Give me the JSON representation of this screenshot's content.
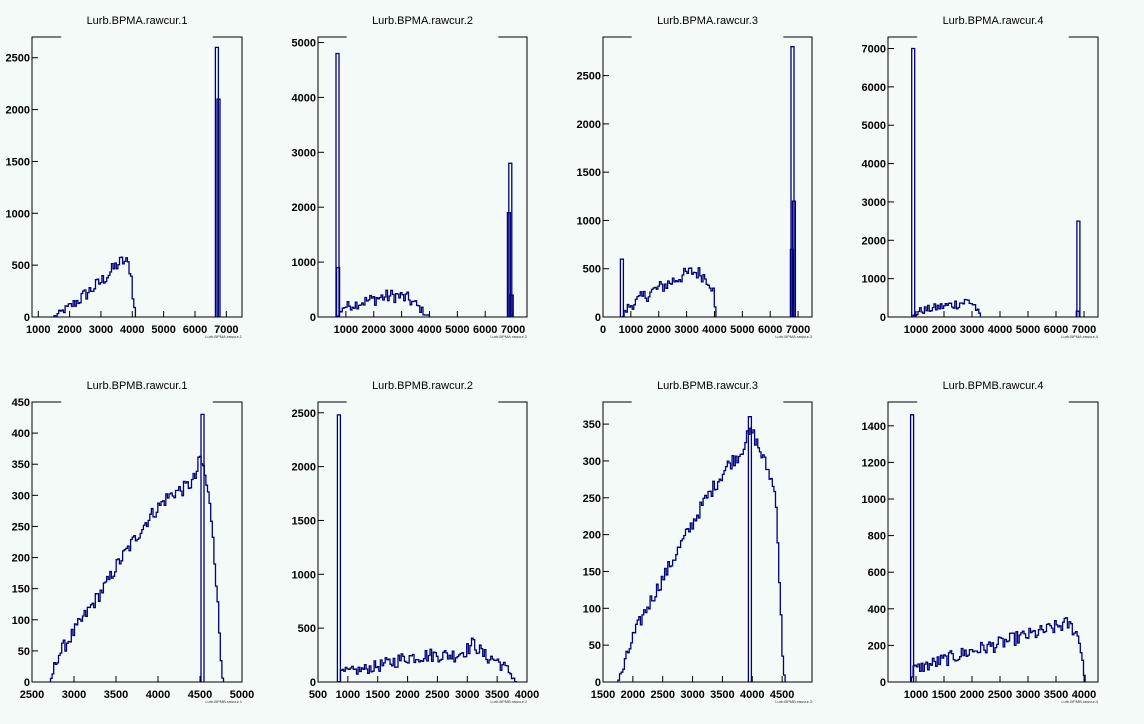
{
  "chart_data": [
    {
      "type": "line",
      "title": "Lurb.BPMA.rawcur.1",
      "xlabel": "Lurb.BPMA.rawcur.1",
      "xlim": [
        800,
        7500
      ],
      "ylim": [
        0,
        2700
      ],
      "xticks": [
        {
          "v": 1000,
          "t": "1000"
        },
        {
          "v": 2000,
          "t": "2000"
        },
        {
          "v": 3000,
          "t": "3000"
        },
        {
          "v": 4000,
          "t": "4000"
        },
        {
          "v": 5000,
          "t": "5000"
        },
        {
          "v": 6000,
          "t": "6000"
        },
        {
          "v": 7000,
          "t": "7000"
        }
      ],
      "yticks": [
        {
          "v": 0,
          "t": "0"
        },
        {
          "v": 500,
          "t": "500"
        },
        {
          "v": 1000,
          "t": "1000"
        },
        {
          "v": 1500,
          "t": "1500"
        },
        {
          "v": 2000,
          "t": "2000"
        },
        {
          "v": 2500,
          "t": "2500"
        }
      ],
      "series": [
        {
          "x": [
            1500,
            1800,
            2200,
            2600,
            3000,
            3300,
            3500,
            3700,
            3850,
            3950,
            4050,
            4100
          ],
          "y": [
            0,
            60,
            140,
            240,
            340,
            430,
            500,
            540,
            520,
            450,
            150,
            0
          ]
        }
      ],
      "spikes": [
        {
          "x": 6700,
          "y": 2600
        },
        {
          "x": 6750,
          "y": 2100
        }
      ]
    },
    {
      "type": "line",
      "title": "Lurb.BPMA.rawcur.2",
      "xlabel": "Lurb.BPMA.rawcur.2",
      "xlim": [
        0,
        7500
      ],
      "ylim": [
        0,
        5100
      ],
      "xticks": [
        {
          "v": 1000,
          "t": "1000"
        },
        {
          "v": 2000,
          "t": "2000"
        },
        {
          "v": 3000,
          "t": "3000"
        },
        {
          "v": 4000,
          "t": "4000"
        },
        {
          "v": 5000,
          "t": "5000"
        },
        {
          "v": 6000,
          "t": "6000"
        },
        {
          "v": 7000,
          "t": "7000"
        }
      ],
      "yticks": [
        {
          "v": 0,
          "t": "0"
        },
        {
          "v": 1000,
          "t": "1000"
        },
        {
          "v": 2000,
          "t": "2000"
        },
        {
          "v": 3000,
          "t": "3000"
        },
        {
          "v": 4000,
          "t": "4000"
        },
        {
          "v": 5000,
          "t": "5000"
        }
      ],
      "series": [
        {
          "x": [
            700,
            900,
            1300,
            1800,
            2300,
            2800,
            3200,
            3500,
            3800,
            4000
          ],
          "y": [
            0,
            180,
            230,
            300,
            360,
            390,
            340,
            230,
            90,
            0
          ]
        }
      ],
      "spikes": [
        {
          "x": 700,
          "y": 4800
        },
        {
          "x": 720,
          "y": 900
        },
        {
          "x": 6850,
          "y": 1900
        },
        {
          "x": 6900,
          "y": 2800
        },
        {
          "x": 6950,
          "y": 400
        }
      ]
    },
    {
      "type": "line",
      "title": "Lurb.BPMA.rawcur.3",
      "xlabel": "Lurb.BPMA.rawcur.3",
      "xlim": [
        0,
        7500
      ],
      "ylim": [
        0,
        2900
      ],
      "xticks": [
        {
          "v": 0,
          "t": "0"
        },
        {
          "v": 1000,
          "t": "1000"
        },
        {
          "v": 2000,
          "t": "2000"
        },
        {
          "v": 3000,
          "t": "3000"
        },
        {
          "v": 4000,
          "t": "4000"
        },
        {
          "v": 5000,
          "t": "5000"
        },
        {
          "v": 6000,
          "t": "6000"
        },
        {
          "v": 7000,
          "t": "7000"
        }
      ],
      "yticks": [
        {
          "v": 0,
          "t": "0"
        },
        {
          "v": 500,
          "t": "500"
        },
        {
          "v": 1000,
          "t": "1000"
        },
        {
          "v": 1500,
          "t": "1500"
        },
        {
          "v": 2000,
          "t": "2000"
        },
        {
          "v": 2500,
          "t": "2500"
        }
      ],
      "series": [
        {
          "x": [
            700,
            900,
            1300,
            1800,
            2300,
            2800,
            3200,
            3500,
            3800,
            3950,
            4050
          ],
          "y": [
            0,
            100,
            180,
            270,
            340,
            420,
            470,
            450,
            380,
            300,
            0
          ]
        }
      ],
      "spikes": [
        {
          "x": 680,
          "y": 600
        },
        {
          "x": 6800,
          "y": 2800
        },
        {
          "x": 6850,
          "y": 1200
        },
        {
          "x": 6780,
          "y": 700
        }
      ]
    },
    {
      "type": "line",
      "title": "Lurb.BPMA.rawcur.4",
      "xlabel": "Lurb.BPMA.rawcur.4",
      "xlim": [
        0,
        7500
      ],
      "ylim": [
        0,
        7300
      ],
      "xticks": [
        {
          "v": 1000,
          "t": "1000"
        },
        {
          "v": 2000,
          "t": "2000"
        },
        {
          "v": 3000,
          "t": "3000"
        },
        {
          "v": 4000,
          "t": "4000"
        },
        {
          "v": 5000,
          "t": "5000"
        },
        {
          "v": 6000,
          "t": "6000"
        },
        {
          "v": 7000,
          "t": "7000"
        }
      ],
      "yticks": [
        {
          "v": 0,
          "t": "0"
        },
        {
          "v": 1000,
          "t": "1000"
        },
        {
          "v": 2000,
          "t": "2000"
        },
        {
          "v": 3000,
          "t": "3000"
        },
        {
          "v": 4000,
          "t": "4000"
        },
        {
          "v": 5000,
          "t": "5000"
        },
        {
          "v": 6000,
          "t": "6000"
        },
        {
          "v": 7000,
          "t": "7000"
        }
      ],
      "series": [
        {
          "x": [
            900,
            1100,
            1500,
            2000,
            2500,
            2900,
            3100,
            3300
          ],
          "y": [
            0,
            150,
            210,
            280,
            350,
            420,
            300,
            0
          ]
        }
      ],
      "spikes": [
        {
          "x": 900,
          "y": 7000
        },
        {
          "x": 6800,
          "y": 2500
        },
        {
          "x": 6780,
          "y": 150
        }
      ]
    },
    {
      "type": "line",
      "title": "Lurb.BPMB.rawcur.1",
      "xlabel": "Lurb.BPMB.rawcur.1",
      "xlim": [
        2500,
        5000
      ],
      "ylim": [
        0,
        450
      ],
      "xticks": [
        {
          "v": 2500,
          "t": "2500"
        },
        {
          "v": 3000,
          "t": "3000"
        },
        {
          "v": 3500,
          "t": "3500"
        },
        {
          "v": 4000,
          "t": "4000"
        },
        {
          "v": 4500,
          "t": "4500"
        },
        {
          "v": 5000,
          "t": "5000"
        }
      ],
      "yticks": [
        {
          "v": 0,
          "t": "0"
        },
        {
          "v": 50,
          "t": "50"
        },
        {
          "v": 100,
          "t": "100"
        },
        {
          "v": 150,
          "t": "150"
        },
        {
          "v": 200,
          "t": "200"
        },
        {
          "v": 250,
          "t": "250"
        },
        {
          "v": 300,
          "t": "300"
        },
        {
          "v": 350,
          "t": "350"
        },
        {
          "v": 400,
          "t": "400"
        },
        {
          "v": 450,
          "t": "450"
        }
      ],
      "series": [
        {
          "x": [
            2720,
            2800,
            2900,
            3000,
            3100,
            3200,
            3300,
            3400,
            3500,
            3600,
            3700,
            3800,
            3900,
            4000,
            4100,
            4200,
            4300,
            4400,
            4450,
            4500,
            4550,
            4600,
            4650,
            4700,
            4750,
            4780
          ],
          "y": [
            0,
            40,
            60,
            80,
            100,
            120,
            140,
            160,
            185,
            205,
            225,
            245,
            265,
            280,
            295,
            305,
            310,
            320,
            330,
            360,
            340,
            300,
            250,
            150,
            40,
            0
          ]
        }
      ],
      "spikes": [
        {
          "x": 4530,
          "y": 430
        }
      ]
    },
    {
      "type": "line",
      "title": "Lurb.BPMB.rawcur.2",
      "xlabel": "Lurb.BPMB.rawcur.2",
      "xlim": [
        500,
        4000
      ],
      "ylim": [
        0,
        2600
      ],
      "xticks": [
        {
          "v": 500,
          "t": "500"
        },
        {
          "v": 1000,
          "t": "1000"
        },
        {
          "v": 1500,
          "t": "1500"
        },
        {
          "v": 2000,
          "t": "2000"
        },
        {
          "v": 2500,
          "t": "2500"
        },
        {
          "v": 3000,
          "t": "3000"
        },
        {
          "v": 3500,
          "t": "3500"
        },
        {
          "v": 4000,
          "t": "4000"
        }
      ],
      "yticks": [
        {
          "v": 0,
          "t": "0"
        },
        {
          "v": 500,
          "t": "500"
        },
        {
          "v": 1000,
          "t": "1000"
        },
        {
          "v": 1500,
          "t": "1500"
        },
        {
          "v": 2000,
          "t": "2000"
        },
        {
          "v": 2500,
          "t": "2500"
        }
      ],
      "series": [
        {
          "x": [
            850,
            900,
            1200,
            1600,
            2000,
            2400,
            2800,
            3000,
            3100,
            3300,
            3500,
            3700,
            3820
          ],
          "y": [
            0,
            90,
            110,
            160,
            230,
            250,
            250,
            300,
            360,
            240,
            200,
            100,
            0
          ]
        }
      ],
      "spikes": [
        {
          "x": 850,
          "y": 2480
        }
      ]
    },
    {
      "type": "line",
      "title": "Lurb.BPMB.rawcur.3",
      "xlabel": "Lurb.BPMB.rawcur.3",
      "xlim": [
        1500,
        5000
      ],
      "ylim": [
        0,
        380
      ],
      "xticks": [
        {
          "v": 1500,
          "t": "1500"
        },
        {
          "v": 2000,
          "t": "2000"
        },
        {
          "v": 2500,
          "t": "2500"
        },
        {
          "v": 3000,
          "t": "3000"
        },
        {
          "v": 3500,
          "t": "3500"
        },
        {
          "v": 4000,
          "t": "4000"
        },
        {
          "v": 4500,
          "t": "4500"
        }
      ],
      "yticks": [
        {
          "v": 0,
          "t": "0"
        },
        {
          "v": 50,
          "t": "50"
        },
        {
          "v": 100,
          "t": "100"
        },
        {
          "v": 150,
          "t": "150"
        },
        {
          "v": 200,
          "t": "200"
        },
        {
          "v": 250,
          "t": "250"
        },
        {
          "v": 300,
          "t": "300"
        },
        {
          "v": 350,
          "t": "350"
        }
      ],
      "series": [
        {
          "x": [
            1750,
            1850,
            2000,
            2200,
            2400,
            2600,
            2800,
            3000,
            3200,
            3400,
            3600,
            3800,
            3900,
            4000,
            4100,
            4200,
            4300,
            4400,
            4450,
            4500,
            4550
          ],
          "y": [
            0,
            20,
            60,
            95,
            125,
            155,
            185,
            215,
            245,
            270,
            295,
            310,
            330,
            340,
            320,
            300,
            280,
            250,
            150,
            50,
            0
          ]
        }
      ],
      "spikes": [
        {
          "x": 3960,
          "y": 360
        }
      ]
    },
    {
      "type": "line",
      "title": "Lurb.BPMB.rawcur.4",
      "xlabel": "Lurb.BPMB.rawcur.4",
      "xlim": [
        500,
        4250
      ],
      "ylim": [
        0,
        1530
      ],
      "xticks": [
        {
          "v": 1000,
          "t": "1000"
        },
        {
          "v": 1500,
          "t": "1500"
        },
        {
          "v": 2000,
          "t": "2000"
        },
        {
          "v": 2500,
          "t": "2500"
        },
        {
          "v": 3000,
          "t": "3000"
        },
        {
          "v": 3500,
          "t": "3500"
        },
        {
          "v": 4000,
          "t": "4000"
        }
      ],
      "yticks": [
        {
          "v": 0,
          "t": "0"
        },
        {
          "v": 200,
          "t": "200"
        },
        {
          "v": 400,
          "t": "400"
        },
        {
          "v": 600,
          "t": "600"
        },
        {
          "v": 800,
          "t": "800"
        },
        {
          "v": 1000,
          "t": "1000"
        },
        {
          "v": 1200,
          "t": "1200"
        },
        {
          "v": 1400,
          "t": "1400"
        }
      ],
      "series": [
        {
          "x": [
            920,
            960,
            1200,
            1600,
            2000,
            2400,
            2800,
            3200,
            3500,
            3700,
            3850,
            3950,
            4020
          ],
          "y": [
            0,
            70,
            90,
            130,
            170,
            200,
            240,
            270,
            300,
            320,
            280,
            190,
            0
          ]
        }
      ],
      "spikes": [
        {
          "x": 930,
          "y": 1460
        }
      ]
    }
  ]
}
